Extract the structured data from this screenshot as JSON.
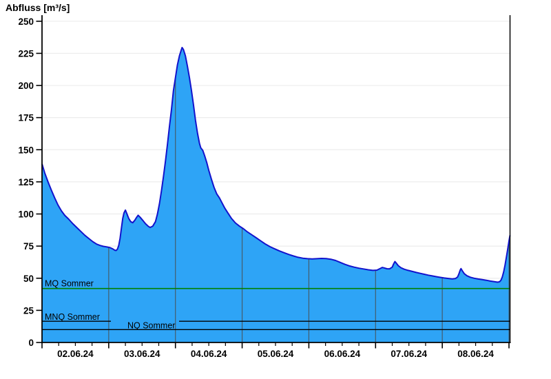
{
  "title": "Abfluss [m³/s]",
  "chart_data": {
    "type": "area",
    "title": "Abfluss [m³/s]",
    "ylabel": "Abfluss [m³/s]",
    "xlabel": "",
    "ylim": [
      0,
      250
    ],
    "y_ticks": [
      0,
      25,
      50,
      75,
      100,
      125,
      150,
      175,
      200,
      225,
      250
    ],
    "x_tick_labels": [
      "02.06.24",
      "03.06.24",
      "04.06.24",
      "05.06.24",
      "06.06.24",
      "07.06.24",
      "08.06.24"
    ],
    "x_days_range": [
      0,
      7.02
    ],
    "minor_tick_step_days": 0.25,
    "grid": "horizontal light-gray lines at each 25; dark vertical lines at day boundaries inside filled area",
    "legend_position": "none",
    "reference_lines": [
      {
        "name": "mq-sommer",
        "label": "MQ Sommer",
        "value": 42,
        "color": "#008000"
      },
      {
        "name": "mnq-sommer",
        "label": "MNQ Sommer",
        "value": 16.5,
        "color": "#000000"
      },
      {
        "name": "nq-sommer",
        "label": "NQ Sommer",
        "value": 10,
        "color": "#000000"
      }
    ],
    "colors": {
      "area_fill": "#2ea4f6",
      "area_line": "#1212cc",
      "grid": "#ececec",
      "axis": "#000000",
      "day_line": "#4a4a4a"
    },
    "series": [
      {
        "name": "Abfluss",
        "x_days": [
          0.0,
          0.04,
          0.09,
          0.14,
          0.19,
          0.24,
          0.29,
          0.34,
          0.4,
          0.46,
          0.52,
          0.58,
          0.64,
          0.7,
          0.76,
          0.82,
          0.87,
          0.92,
          0.97,
          1.02,
          1.06,
          1.09,
          1.11,
          1.13,
          1.15,
          1.17,
          1.19,
          1.21,
          1.23,
          1.25,
          1.27,
          1.3,
          1.33,
          1.36,
          1.39,
          1.42,
          1.44,
          1.47,
          1.51,
          1.55,
          1.59,
          1.62,
          1.66,
          1.7,
          1.73,
          1.76,
          1.79,
          1.82,
          1.85,
          1.88,
          1.91,
          1.94,
          1.97,
          2.0,
          2.03,
          2.06,
          2.09,
          2.1,
          2.12,
          2.15,
          2.18,
          2.21,
          2.24,
          2.27,
          2.3,
          2.33,
          2.36,
          2.38,
          2.41,
          2.44,
          2.47,
          2.5,
          2.54,
          2.58,
          2.62,
          2.66,
          2.7,
          2.74,
          2.79,
          2.84,
          2.9,
          2.96,
          3.02,
          3.08,
          3.14,
          3.21,
          3.28,
          3.35,
          3.42,
          3.49,
          3.56,
          3.63,
          3.7,
          3.77,
          3.84,
          3.91,
          3.98,
          4.05,
          4.12,
          4.19,
          4.26,
          4.33,
          4.4,
          4.47,
          4.54,
          4.61,
          4.68,
          4.75,
          4.82,
          4.89,
          4.96,
          5.02,
          5.07,
          5.1,
          5.13,
          5.17,
          5.21,
          5.25,
          5.27,
          5.29,
          5.31,
          5.34,
          5.38,
          5.43,
          5.49,
          5.55,
          5.61,
          5.67,
          5.73,
          5.79,
          5.85,
          5.91,
          5.97,
          6.03,
          6.09,
          6.15,
          6.2,
          6.23,
          6.25,
          6.27,
          6.28,
          6.3,
          6.33,
          6.37,
          6.42,
          6.48,
          6.54,
          6.6,
          6.66,
          6.72,
          6.78,
          6.83,
          6.86,
          6.88,
          6.9,
          6.92,
          6.94,
          6.96,
          6.98,
          7.0,
          7.015
        ],
        "values": [
          139,
          132,
          125,
          118.5,
          112.5,
          107,
          102.5,
          99,
          96,
          92.5,
          89.5,
          86.5,
          83.5,
          81,
          78.5,
          76.5,
          75.5,
          74.8,
          74.4,
          73.8,
          72.8,
          71.8,
          71.6,
          72.5,
          75.5,
          81,
          89,
          96.5,
          101,
          103,
          100.5,
          96.5,
          94,
          93.2,
          95,
          97.5,
          99,
          97.5,
          95,
          92.5,
          90.5,
          89.5,
          90.5,
          94,
          100,
          108,
          118,
          129,
          141,
          154,
          168,
          181,
          196,
          206,
          216,
          223,
          228,
          229.5,
          228,
          223,
          215,
          206,
          196,
          185,
          173,
          163,
          155,
          151.5,
          149.5,
          145,
          140,
          134,
          127,
          120.5,
          115.5,
          112.5,
          108.5,
          104.5,
          100.5,
          96.5,
          93,
          90.5,
          88.5,
          86,
          84,
          81.5,
          79,
          76.5,
          74.5,
          72.8,
          71.2,
          69.8,
          68.5,
          67.3,
          66.3,
          65.6,
          65.2,
          65,
          65.2,
          65.4,
          65.3,
          64.8,
          63.8,
          62.3,
          60.8,
          59.6,
          58.6,
          57.8,
          57.2,
          56.6,
          56.1,
          56.3,
          57.6,
          58.4,
          58,
          57.4,
          57.3,
          58.6,
          61,
          63,
          61.8,
          59.8,
          58.2,
          57,
          56.1,
          55.3,
          54.5,
          53.8,
          53.1,
          52.4,
          51.8,
          51.2,
          50.7,
          50.2,
          49.8,
          49.5,
          49.8,
          51,
          53.5,
          56.5,
          57.5,
          55.8,
          53.5,
          51.9,
          50.8,
          50,
          49.4,
          48.9,
          48.4,
          47.8,
          47.3,
          46.9,
          47.3,
          48.5,
          51,
          55,
          60,
          66,
          72.5,
          79,
          83.5
        ]
      }
    ]
  }
}
